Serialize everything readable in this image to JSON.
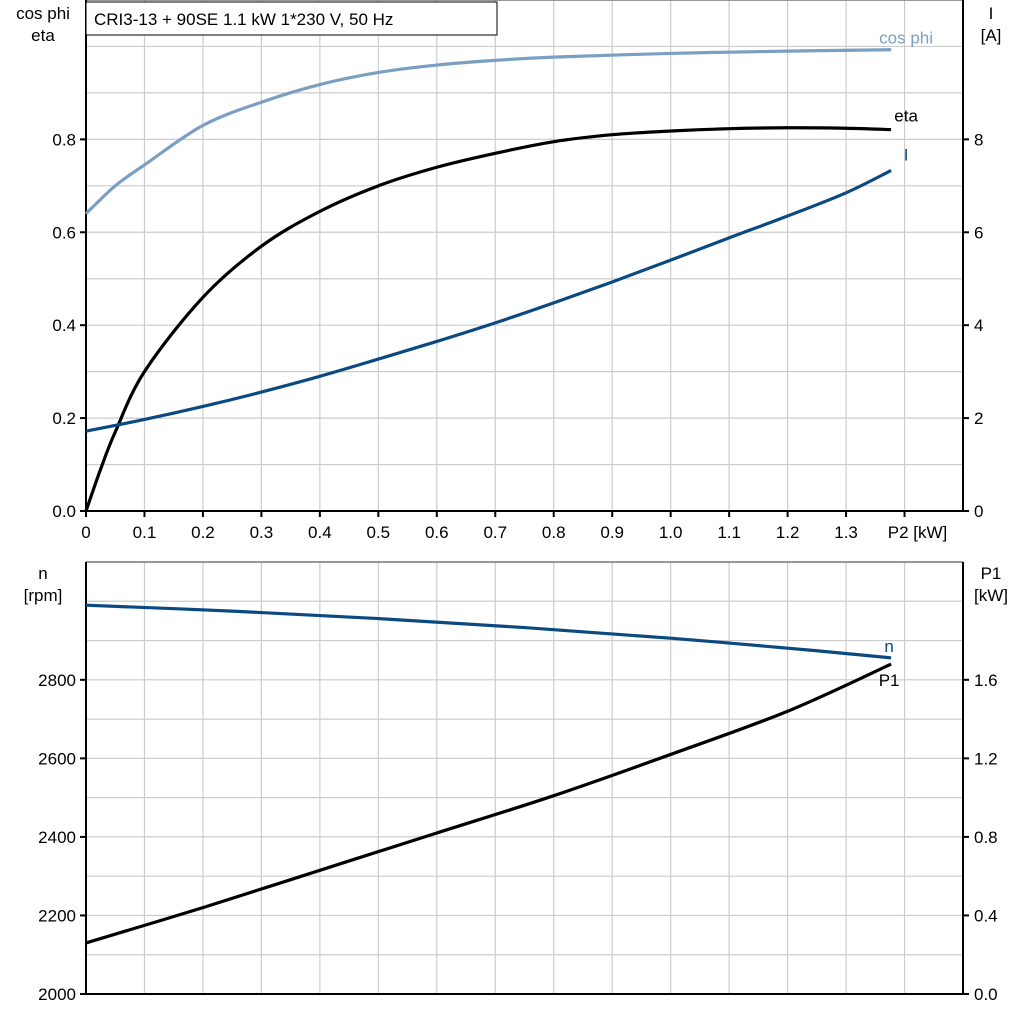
{
  "title": "CRI3-13 + 90SE   1.1 kW   1*230 V, 50 Hz",
  "chart_data": [
    {
      "type": "line",
      "x_label": "P2 [kW]",
      "x_ticks": [
        "0",
        "0.1",
        "0.2",
        "0.3",
        "0.4",
        "0.5",
        "0.6",
        "0.7",
        "0.8",
        "0.9",
        "1.0",
        "1.1",
        "1.2",
        "1.3"
      ],
      "xlim": [
        0,
        1.5
      ],
      "left_axis": {
        "label_lines": [
          "cos phi",
          "eta"
        ],
        "ticks": [
          "0.0",
          "0.2",
          "0.4",
          "0.6",
          "0.8"
        ],
        "ylim": [
          0,
          1.1
        ]
      },
      "right_axis": {
        "label_lines": [
          "I",
          "[A]"
        ],
        "ticks": [
          "0",
          "2",
          "4",
          "6",
          "8"
        ],
        "ylim": [
          0,
          11
        ]
      },
      "grid": true,
      "series": [
        {
          "name": "cos phi",
          "axis": "left",
          "color": "#7a9fc2",
          "x": [
            0,
            0.05,
            0.1,
            0.2,
            0.3,
            0.4,
            0.5,
            0.6,
            0.7,
            0.8,
            1.0,
            1.2,
            1.377
          ],
          "y": [
            0.64,
            0.7,
            0.745,
            0.83,
            0.88,
            0.918,
            0.944,
            0.96,
            0.97,
            0.977,
            0.985,
            0.99,
            0.993
          ]
        },
        {
          "name": "eta",
          "axis": "left",
          "color": "#000000",
          "x": [
            0,
            0.025,
            0.05,
            0.1,
            0.2,
            0.3,
            0.4,
            0.5,
            0.6,
            0.7,
            0.8,
            0.9,
            1.0,
            1.1,
            1.2,
            1.3,
            1.377
          ],
          "y": [
            0,
            0.09,
            0.17,
            0.3,
            0.46,
            0.57,
            0.645,
            0.7,
            0.74,
            0.77,
            0.795,
            0.81,
            0.818,
            0.823,
            0.825,
            0.824,
            0.821
          ]
        },
        {
          "name": "I",
          "axis": "right",
          "color": "#0b4a80",
          "x": [
            0,
            0.1,
            0.2,
            0.3,
            0.4,
            0.5,
            0.6,
            0.7,
            0.8,
            0.9,
            1.0,
            1.1,
            1.2,
            1.3,
            1.377
          ],
          "y": [
            1.72,
            1.97,
            2.25,
            2.56,
            2.9,
            3.27,
            3.65,
            4.05,
            4.48,
            4.93,
            5.4,
            5.88,
            6.35,
            6.85,
            7.33
          ]
        }
      ]
    },
    {
      "type": "line",
      "xlim": [
        0,
        1.5
      ],
      "left_axis": {
        "label_lines": [
          "n",
          "[rpm]"
        ],
        "ticks": [
          "2000",
          "2200",
          "2400",
          "2600",
          "2800"
        ],
        "ylim": [
          2000,
          3100
        ]
      },
      "right_axis": {
        "label_lines": [
          "P1",
          "[kW]"
        ],
        "ticks": [
          "0.0",
          "0.4",
          "0.8",
          "1.2",
          "1.6"
        ],
        "ylim": [
          0,
          2.2
        ]
      },
      "grid": true,
      "series": [
        {
          "name": "n",
          "axis": "left",
          "color": "#0b4a80",
          "x": [
            0,
            0.25,
            0.5,
            0.75,
            1.0,
            1.25,
            1.377
          ],
          "y": [
            2990,
            2975,
            2956,
            2933,
            2906,
            2874,
            2856
          ]
        },
        {
          "name": "P1",
          "axis": "right",
          "color": "#000000",
          "x": [
            0,
            0.2,
            0.4,
            0.6,
            0.8,
            1.0,
            1.2,
            1.377
          ],
          "y": [
            0.26,
            0.44,
            0.63,
            0.82,
            1.01,
            1.22,
            1.44,
            1.68
          ]
        }
      ]
    }
  ]
}
